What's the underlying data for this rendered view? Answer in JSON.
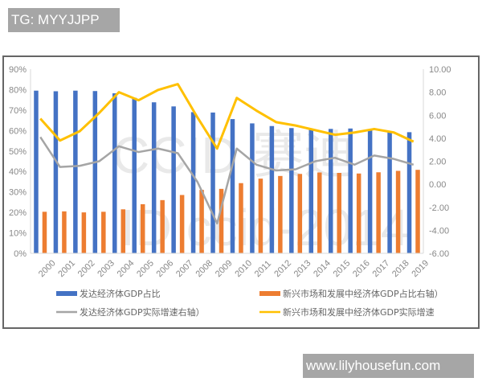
{
  "overlays": {
    "top_tag": "TG: MYYJJPP",
    "bottom_tag": "www.lilyhousefun.com"
  },
  "watermark": {
    "line1": "CCID 赛迪",
    "line2": "ID ccid-2014"
  },
  "chart_data": {
    "type": "bar",
    "title": "",
    "xlabel": "",
    "ylabel": "",
    "ylabel_right": "",
    "categories": [
      "2000",
      "2001",
      "2002",
      "2003",
      "2004",
      "2005",
      "2006",
      "2007",
      "2008",
      "2009",
      "2010",
      "2011",
      "2012",
      "2013",
      "2014",
      "2015",
      "2016",
      "2017",
      "2018",
      "2019"
    ],
    "left_axis": {
      "ticks": [
        "0%",
        "10%",
        "20%",
        "30%",
        "40%",
        "50%",
        "60%",
        "70%",
        "80%",
        "90%"
      ],
      "ylim": [
        0,
        90
      ]
    },
    "right_axis": {
      "ticks": [
        "-6.00",
        "-4.00",
        "-2.00",
        "0.00",
        "2.00",
        "4.00",
        "6.00",
        "8.00",
        "10.00"
      ],
      "ylim": [
        -6,
        10
      ]
    },
    "grid": false,
    "legend_position": "bottom",
    "series": [
      {
        "name": "发达经济体GDP占比",
        "type": "bar",
        "axis": "left",
        "color": "#4472c4",
        "values": [
          79.5,
          79.2,
          79.5,
          79.3,
          78.2,
          76.0,
          73.8,
          71.8,
          69.0,
          68.8,
          65.6,
          63.5,
          62.2,
          61.2,
          60.5,
          60.8,
          61.0,
          60.3,
          59.4,
          59.2
        ]
      },
      {
        "name": "新兴市场和发展中经济体GDP占比右轴）",
        "type": "bar",
        "axis": "left",
        "color": "#ed7d31",
        "values": [
          20.3,
          20.5,
          20.0,
          20.3,
          21.5,
          24.0,
          26.0,
          28.5,
          31.0,
          31.5,
          34.3,
          36.5,
          37.8,
          38.8,
          39.5,
          39.3,
          39.0,
          39.6,
          40.3,
          40.8
        ]
      },
      {
        "name": "发达经济体GDP实际增速右轴）",
        "type": "line",
        "axis": "right",
        "color": "#a5a5a5",
        "values": [
          4.1,
          1.5,
          1.6,
          2.0,
          3.3,
          2.8,
          3.1,
          2.7,
          0.2,
          -3.4,
          3.1,
          1.7,
          1.2,
          1.3,
          2.0,
          2.3,
          1.7,
          2.5,
          2.2,
          1.7
        ]
      },
      {
        "name": "新兴市场和发展中经济体GDP实际增速",
        "type": "line",
        "axis": "right",
        "color": "#ffc000",
        "values": [
          5.7,
          3.8,
          4.6,
          6.2,
          8.0,
          7.3,
          8.2,
          8.7,
          5.8,
          3.1,
          7.5,
          6.4,
          5.4,
          5.1,
          4.7,
          4.3,
          4.5,
          4.8,
          4.5,
          3.7
        ]
      }
    ]
  }
}
